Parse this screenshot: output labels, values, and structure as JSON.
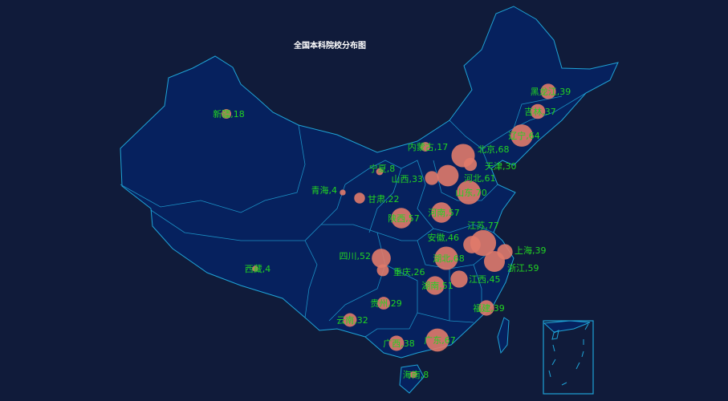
{
  "title": "全国本科院校分布图",
  "colors": {
    "background": "#101b3a",
    "land": "#06215e",
    "border": "#1fa3d6",
    "point": "#e07a6a",
    "label": "#22d422"
  },
  "points": [
    {
      "name": "新疆",
      "value": 18
    },
    {
      "name": "西藏",
      "value": 4
    },
    {
      "name": "青海",
      "value": 4
    },
    {
      "name": "甘肃",
      "value": 22
    },
    {
      "name": "宁夏",
      "value": 8
    },
    {
      "name": "内蒙古",
      "value": 17
    },
    {
      "name": "陕西",
      "value": 57
    },
    {
      "name": "四川",
      "value": 52
    },
    {
      "name": "重庆",
      "value": 26
    },
    {
      "name": "贵州",
      "value": 29
    },
    {
      "name": "云南",
      "value": 32
    },
    {
      "name": "广西",
      "value": 38
    },
    {
      "name": "广东",
      "value": 67
    },
    {
      "name": "海南",
      "value": 8
    },
    {
      "name": "湖南",
      "value": 51
    },
    {
      "name": "湖北",
      "value": 68
    },
    {
      "name": "江西",
      "value": 45
    },
    {
      "name": "河南",
      "value": 57
    },
    {
      "name": "山西",
      "value": 33
    },
    {
      "name": "河北",
      "value": 61
    },
    {
      "name": "北京",
      "value": 68
    },
    {
      "name": "天津",
      "value": 30
    },
    {
      "name": "山东",
      "value": 70
    },
    {
      "name": "安徽",
      "value": 46
    },
    {
      "name": "江苏",
      "value": 77
    },
    {
      "name": "上海",
      "value": 39
    },
    {
      "name": "浙江",
      "value": 59
    },
    {
      "name": "福建",
      "value": 39
    },
    {
      "name": "辽宁",
      "value": 64
    },
    {
      "name": "吉林",
      "value": 37
    },
    {
      "name": "黑龙江",
      "value": 39
    }
  ]
}
